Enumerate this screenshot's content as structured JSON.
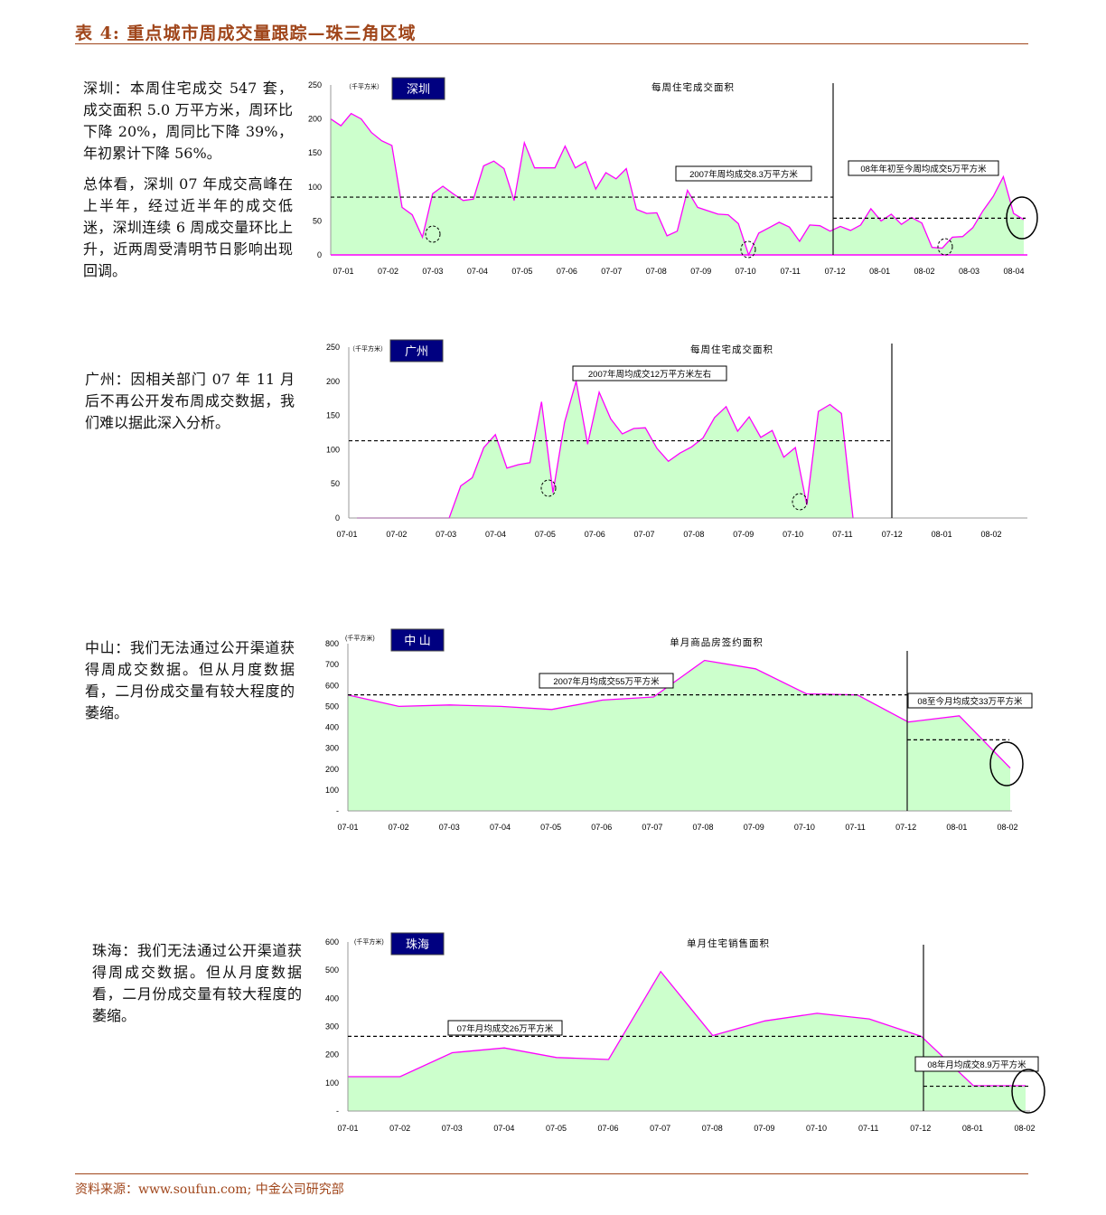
{
  "header": {
    "title": "表 4:  重点城市周成交量跟踪—珠三角区域"
  },
  "footer": {
    "source": "资料来源：www.soufun.com;  中金公司研究部"
  },
  "texts": {
    "shenzhen": [
      "深圳：本周住宅成交 547 套，成交面积 5.0 万平方米，周环比下降 20%，周同比下降 39%，年初累计下降 56%。",
      "总体看，深圳 07 年成交高峰在上半年，经过近半年的成交低迷，深圳连续 6 周成交量环比上升，近两周受清明节日影响出现回调。"
    ],
    "guangzhou": [
      "广州：因相关部门 07 年 11 月后不再公开发布周成交数据，我们难以据此深入分析。"
    ],
    "zhongshan": [
      "中山：我们无法通过公开渠道获得周成交数据。但从月度数据看，二月份成交量有较大程度的萎缩。"
    ],
    "zhuhai": [
      "珠海：我们无法通过公开渠道获得周成交数据。但从月度数据看，二月份成交量有较大程度的萎缩。"
    ]
  },
  "colors": {
    "line": "#ff00ff",
    "fill": "#ccffcc",
    "badge": "#000080",
    "accent": "#a0461b"
  },
  "chart_data": [
    {
      "type": "area",
      "city": "深圳",
      "title": "每周住宅成交面积",
      "unit": "（千平方米）",
      "ylim": [
        0,
        250
      ],
      "yticks": [
        "0",
        "50",
        "100",
        "150",
        "200",
        "250"
      ],
      "xticks": [
        "07-01",
        "07-02",
        "07-03",
        "07-04",
        "07-05",
        "07-06",
        "07-07",
        "07-08",
        "07-09",
        "07-10",
        "07-11",
        "07-12",
        "08-01",
        "08-02",
        "08-03",
        "08-04"
      ],
      "values": [
        200,
        190,
        208,
        200,
        180,
        168,
        161,
        70,
        59,
        26,
        90,
        101,
        90,
        80,
        82,
        131,
        138,
        127,
        80,
        165,
        128,
        128,
        128,
        160,
        128,
        137,
        97,
        121,
        112,
        127,
        67,
        61,
        62,
        28,
        35,
        95,
        70,
        65,
        60,
        59,
        46,
        0,
        32,
        40,
        48,
        41,
        20,
        44,
        43,
        35,
        42,
        36,
        44,
        68,
        50,
        60,
        45,
        55,
        47,
        11,
        10,
        26,
        27,
        40,
        65,
        86,
        115,
        61,
        52
      ],
      "averages": [
        {
          "label": "2007年周均成交8.3万平方米",
          "value": 85
        },
        {
          "label": "08年年初至今周均成交5万平方米",
          "value": 54
        }
      ]
    },
    {
      "type": "area",
      "city": "广州",
      "title": "每周住宅成交面积",
      "unit": "（千平方米）",
      "ylim": [
        0,
        250
      ],
      "yticks": [
        "0",
        "50",
        "100",
        "150",
        "200",
        "250"
      ],
      "xticks": [
        "07-01",
        "07-02",
        "07-03",
        "07-04",
        "07-05",
        "07-06",
        "07-07",
        "07-08",
        "07-09",
        "07-10",
        "07-11",
        "07-12",
        "08-01",
        "08-02"
      ],
      "values": [
        0,
        0,
        0,
        0,
        0,
        0,
        0,
        0,
        0,
        47,
        59,
        103,
        122,
        73,
        78,
        81,
        170,
        37,
        140,
        200,
        108,
        184,
        145,
        123,
        131,
        132,
        102,
        83,
        95,
        104,
        117,
        147,
        163,
        127,
        148,
        118,
        128,
        89,
        103,
        19,
        156,
        166,
        153,
        0
      ],
      "averages": [
        {
          "label": "2007年周均成交12万平方米左右",
          "value": 113
        }
      ]
    },
    {
      "type": "area",
      "city": "中 山",
      "title": "单月商品房签约面积",
      "unit": "(千平方米)",
      "ylim": [
        0,
        800
      ],
      "yticks": [
        "-",
        "100",
        "200",
        "300",
        "400",
        "500",
        "600",
        "700",
        "800"
      ],
      "xticks": [
        "07-01",
        "07-02",
        "07-03",
        "07-04",
        "07-05",
        "07-06",
        "07-07",
        "07-08",
        "07-09",
        "07-10",
        "07-11",
        "07-12",
        "08-01",
        "08-02"
      ],
      "values": [
        555,
        500,
        507,
        500,
        485,
        530,
        545,
        720,
        680,
        560,
        555,
        425,
        455,
        205
      ],
      "averages": [
        {
          "label": "2007年月均成交55万平方米",
          "value": 555
        },
        {
          "label": "08至今月均成交33万平方米",
          "value": 340
        }
      ]
    },
    {
      "type": "area",
      "city": "珠海",
      "title": "单月住宅销售面积",
      "unit": "(千平方米)",
      "ylim": [
        0,
        600
      ],
      "yticks": [
        "-",
        "100",
        "200",
        "300",
        "400",
        "500",
        "600"
      ],
      "xticks": [
        "07-01",
        "07-02",
        "07-03",
        "07-04",
        "07-05",
        "07-06",
        "07-07",
        "07-08",
        "07-09",
        "07-10",
        "07-11",
        "07-12",
        "08-01",
        "08-02"
      ],
      "values": [
        122,
        122,
        207,
        224,
        190,
        183,
        495,
        268,
        320,
        347,
        327,
        265,
        90,
        90
      ],
      "averages": [
        {
          "label": "07年月均成交26万平方米",
          "value": 265
        },
        {
          "label": "08年月均成交8.9万平方米",
          "value": 88
        }
      ]
    }
  ]
}
